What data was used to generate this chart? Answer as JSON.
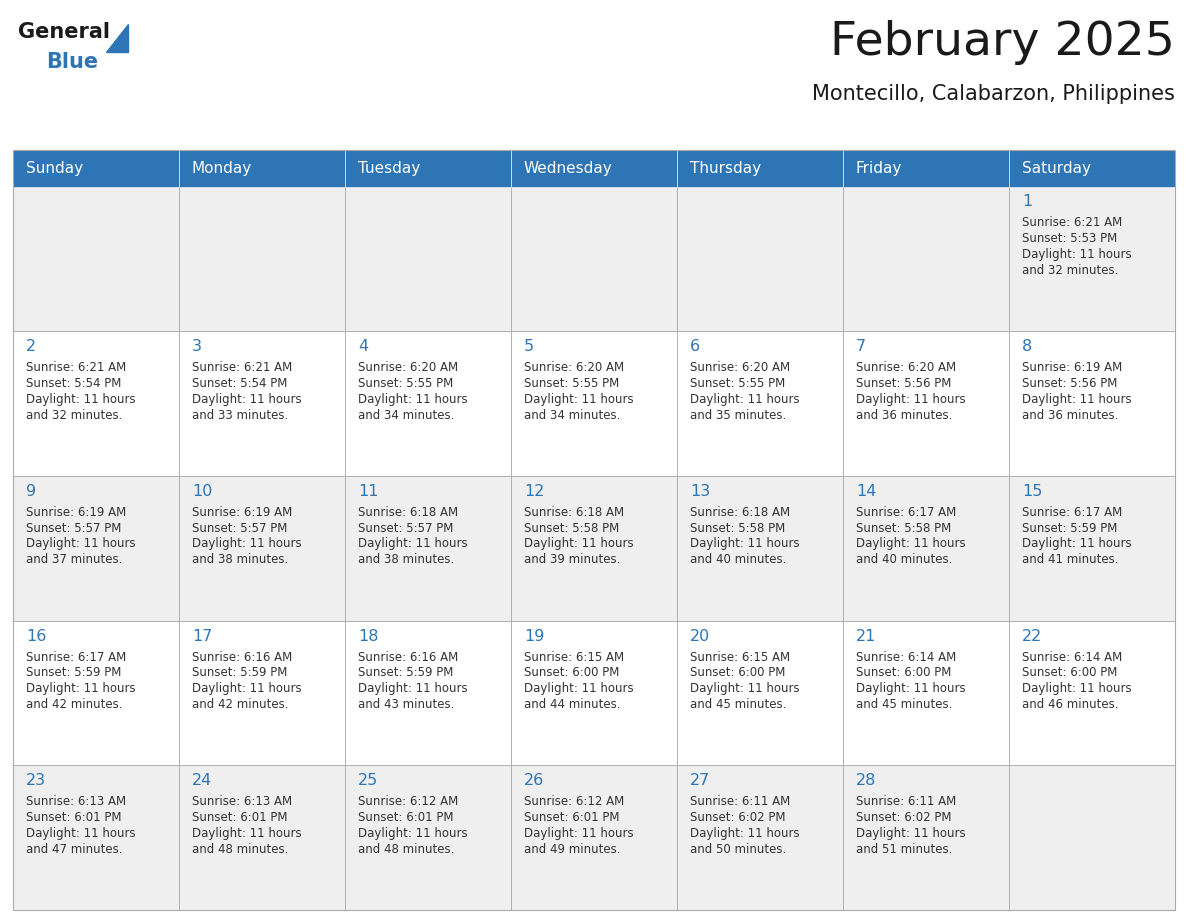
{
  "title": "February 2025",
  "subtitle": "Montecillo, Calabarzon, Philippines",
  "header_bg": "#2E75B6",
  "header_text": "#FFFFFF",
  "days_of_week": [
    "Sunday",
    "Monday",
    "Tuesday",
    "Wednesday",
    "Thursday",
    "Friday",
    "Saturday"
  ],
  "cell_bg_light": "#EFEFEF",
  "cell_bg_white": "#FFFFFF",
  "border_color": "#AAAAAA",
  "header_border": "#2E75B6",
  "day_number_color": "#2E75B6",
  "text_color": "#333333",
  "title_color": "#1A1A1A",
  "logo_black": "#1A1A1A",
  "logo_blue": "#2E75B6",
  "calendar_data": [
    [
      null,
      null,
      null,
      null,
      null,
      null,
      {
        "day": 1,
        "sunrise": "6:21 AM",
        "sunset": "5:53 PM",
        "daylight": "11 hours and 32 minutes"
      }
    ],
    [
      {
        "day": 2,
        "sunrise": "6:21 AM",
        "sunset": "5:54 PM",
        "daylight": "11 hours and 32 minutes"
      },
      {
        "day": 3,
        "sunrise": "6:21 AM",
        "sunset": "5:54 PM",
        "daylight": "11 hours and 33 minutes"
      },
      {
        "day": 4,
        "sunrise": "6:20 AM",
        "sunset": "5:55 PM",
        "daylight": "11 hours and 34 minutes"
      },
      {
        "day": 5,
        "sunrise": "6:20 AM",
        "sunset": "5:55 PM",
        "daylight": "11 hours and 34 minutes"
      },
      {
        "day": 6,
        "sunrise": "6:20 AM",
        "sunset": "5:55 PM",
        "daylight": "11 hours and 35 minutes"
      },
      {
        "day": 7,
        "sunrise": "6:20 AM",
        "sunset": "5:56 PM",
        "daylight": "11 hours and 36 minutes"
      },
      {
        "day": 8,
        "sunrise": "6:19 AM",
        "sunset": "5:56 PM",
        "daylight": "11 hours and 36 minutes"
      }
    ],
    [
      {
        "day": 9,
        "sunrise": "6:19 AM",
        "sunset": "5:57 PM",
        "daylight": "11 hours and 37 minutes"
      },
      {
        "day": 10,
        "sunrise": "6:19 AM",
        "sunset": "5:57 PM",
        "daylight": "11 hours and 38 minutes"
      },
      {
        "day": 11,
        "sunrise": "6:18 AM",
        "sunset": "5:57 PM",
        "daylight": "11 hours and 38 minutes"
      },
      {
        "day": 12,
        "sunrise": "6:18 AM",
        "sunset": "5:58 PM",
        "daylight": "11 hours and 39 minutes"
      },
      {
        "day": 13,
        "sunrise": "6:18 AM",
        "sunset": "5:58 PM",
        "daylight": "11 hours and 40 minutes"
      },
      {
        "day": 14,
        "sunrise": "6:17 AM",
        "sunset": "5:58 PM",
        "daylight": "11 hours and 40 minutes"
      },
      {
        "day": 15,
        "sunrise": "6:17 AM",
        "sunset": "5:59 PM",
        "daylight": "11 hours and 41 minutes"
      }
    ],
    [
      {
        "day": 16,
        "sunrise": "6:17 AM",
        "sunset": "5:59 PM",
        "daylight": "11 hours and 42 minutes"
      },
      {
        "day": 17,
        "sunrise": "6:16 AM",
        "sunset": "5:59 PM",
        "daylight": "11 hours and 42 minutes"
      },
      {
        "day": 18,
        "sunrise": "6:16 AM",
        "sunset": "5:59 PM",
        "daylight": "11 hours and 43 minutes"
      },
      {
        "day": 19,
        "sunrise": "6:15 AM",
        "sunset": "6:00 PM",
        "daylight": "11 hours and 44 minutes"
      },
      {
        "day": 20,
        "sunrise": "6:15 AM",
        "sunset": "6:00 PM",
        "daylight": "11 hours and 45 minutes"
      },
      {
        "day": 21,
        "sunrise": "6:14 AM",
        "sunset": "6:00 PM",
        "daylight": "11 hours and 45 minutes"
      },
      {
        "day": 22,
        "sunrise": "6:14 AM",
        "sunset": "6:00 PM",
        "daylight": "11 hours and 46 minutes"
      }
    ],
    [
      {
        "day": 23,
        "sunrise": "6:13 AM",
        "sunset": "6:01 PM",
        "daylight": "11 hours and 47 minutes"
      },
      {
        "day": 24,
        "sunrise": "6:13 AM",
        "sunset": "6:01 PM",
        "daylight": "11 hours and 48 minutes"
      },
      {
        "day": 25,
        "sunrise": "6:12 AM",
        "sunset": "6:01 PM",
        "daylight": "11 hours and 48 minutes"
      },
      {
        "day": 26,
        "sunrise": "6:12 AM",
        "sunset": "6:01 PM",
        "daylight": "11 hours and 49 minutes"
      },
      {
        "day": 27,
        "sunrise": "6:11 AM",
        "sunset": "6:02 PM",
        "daylight": "11 hours and 50 minutes"
      },
      {
        "day": 28,
        "sunrise": "6:11 AM",
        "sunset": "6:02 PM",
        "daylight": "11 hours and 51 minutes"
      },
      null
    ]
  ]
}
